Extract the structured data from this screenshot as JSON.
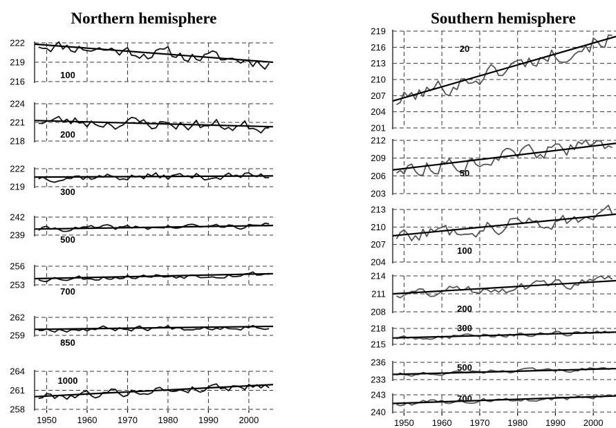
{
  "colors": {
    "north_series": "#111111",
    "south_series": "#555555",
    "trend": "#000000",
    "grid": "#333333"
  },
  "chart_data": [
    {
      "type": "line",
      "title": "Northern hemisphere",
      "x_ticks": [
        1950,
        1960,
        1970,
        1980,
        1990,
        2000
      ],
      "x_range": [
        1947,
        2006
      ],
      "grid": true,
      "panels": [
        {
          "level": "100",
          "ylim": [
            216,
            222
          ],
          "yticks": [
            216,
            219,
            222
          ],
          "trend": [
            221.8,
            219.0
          ],
          "series_seed": 11,
          "amp": 0.9
        },
        {
          "level": "200",
          "ylim": [
            218,
            224
          ],
          "yticks": [
            218,
            221,
            224
          ],
          "trend": [
            221.3,
            220.3
          ],
          "series_seed": 23,
          "amp": 0.9
        },
        {
          "level": "300",
          "ylim": [
            219,
            222
          ],
          "yticks": [
            219,
            222
          ],
          "trend": [
            220.6,
            220.8
          ],
          "series_seed": 37,
          "amp": 0.6
        },
        {
          "level": "500",
          "ylim": [
            239,
            242
          ],
          "yticks": [
            239,
            242
          ],
          "trend": [
            240.0,
            240.6
          ],
          "series_seed": 41,
          "amp": 0.4
        },
        {
          "level": "700",
          "ylim": [
            253,
            256
          ],
          "yticks": [
            253,
            256
          ],
          "trend": [
            254.0,
            254.8
          ],
          "series_seed": 53,
          "amp": 0.4
        },
        {
          "level": "850",
          "ylim": [
            259,
            262
          ],
          "yticks": [
            259,
            262
          ],
          "trend": [
            260.0,
            260.5
          ],
          "series_seed": 67,
          "amp": 0.4
        },
        {
          "level": "1000",
          "ylim": [
            258,
            264
          ],
          "yticks": [
            258,
            261,
            264
          ],
          "trend": [
            260.0,
            261.9
          ],
          "series_seed": 79,
          "amp": 0.6
        }
      ]
    },
    {
      "type": "line",
      "title": "Southern hemisphere",
      "x_ticks": [
        1950,
        1960,
        1970,
        1980,
        1990,
        2000
      ],
      "x_range": [
        1947,
        2006
      ],
      "grid": true,
      "panels": [
        {
          "level": "20",
          "ylim": [
            201,
            219
          ],
          "yticks": [
            201,
            204,
            207,
            210,
            213,
            216,
            219
          ],
          "trend": [
            206.0,
            218.0
          ],
          "series_seed": 101,
          "amp": 1.5
        },
        {
          "level": "50",
          "ylim": [
            203,
            212
          ],
          "yticks": [
            203,
            206,
            209,
            212
          ],
          "trend": [
            207.0,
            211.5
          ],
          "series_seed": 113,
          "amp": 1.2
        },
        {
          "level": "100",
          "ylim": [
            204,
            213
          ],
          "yticks": [
            204,
            207,
            210,
            213
          ],
          "trend": [
            208.5,
            212.2
          ],
          "series_seed": 127,
          "amp": 1.2
        },
        {
          "level": "200",
          "ylim": [
            208,
            214
          ],
          "yticks": [
            208,
            211,
            214
          ],
          "trend": [
            211.0,
            213.2
          ],
          "series_seed": 131,
          "amp": 0.8
        },
        {
          "level": "300",
          "ylim": [
            215,
            218
          ],
          "yticks": [
            215,
            218
          ],
          "trend": [
            216.2,
            217.3
          ],
          "series_seed": 149,
          "amp": 0.4
        },
        {
          "level": "500",
          "ylim": [
            233,
            236
          ],
          "yticks": [
            233,
            236
          ],
          "trend": [
            233.9,
            234.9
          ],
          "series_seed": 151,
          "amp": 0.3
        },
        {
          "level": "700",
          "ylim": [
            240,
            243
          ],
          "yticks": [
            240,
            243
          ],
          "trend": [
            241.5,
            242.8
          ],
          "series_seed": 163,
          "amp": 0.4
        }
      ]
    }
  ]
}
